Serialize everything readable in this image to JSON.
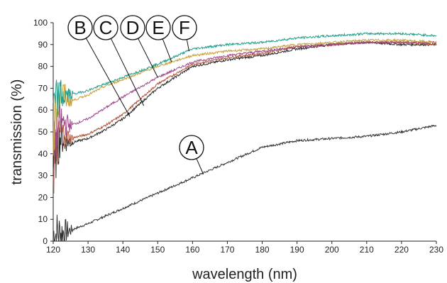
{
  "chart_data": {
    "type": "line",
    "xlabel": "wavelength (nm)",
    "ylabel": "transmission (%)",
    "xlim": [
      120,
      230
    ],
    "ylim": [
      0,
      100
    ],
    "x_ticks": [
      120,
      130,
      140,
      150,
      160,
      170,
      180,
      190,
      200,
      210,
      220,
      230
    ],
    "y_ticks": [
      0,
      10,
      20,
      30,
      40,
      50,
      60,
      70,
      80,
      90,
      100
    ],
    "grid": false,
    "series": [
      {
        "name": "A",
        "color": "#333333",
        "x": [
          120,
          125,
          130,
          140,
          150,
          160,
          170,
          180,
          190,
          200,
          210,
          220,
          230
        ],
        "y": [
          3,
          5,
          8,
          15,
          22,
          29,
          36,
          43,
          46,
          47,
          48,
          50,
          53
        ]
      },
      {
        "name": "B",
        "color": "#2b2b2b",
        "x": [
          120,
          122,
          125,
          130,
          135,
          140,
          150,
          160,
          170,
          180,
          190,
          200,
          210,
          220,
          230
        ],
        "y": [
          35,
          48,
          45,
          47,
          51,
          56,
          70,
          80,
          83,
          85,
          88,
          90,
          91,
          90,
          90
        ]
      },
      {
        "name": "C",
        "color": "#b0533a",
        "x": [
          120,
          122,
          125,
          130,
          135,
          140,
          150,
          160,
          170,
          180,
          190,
          200,
          210,
          220,
          230
        ],
        "y": [
          32,
          50,
          47,
          49,
          53,
          58,
          72,
          81,
          84,
          86,
          89,
          90,
          91,
          91,
          90
        ]
      },
      {
        "name": "D",
        "color": "#a04a8a",
        "x": [
          120,
          122,
          125,
          130,
          135,
          140,
          150,
          160,
          170,
          180,
          190,
          200,
          210,
          220,
          230
        ],
        "y": [
          40,
          55,
          53,
          56,
          61,
          66,
          75,
          82,
          85,
          87,
          89,
          90,
          91,
          91,
          91
        ]
      },
      {
        "name": "E",
        "color": "#c8a13a",
        "x": [
          120,
          122,
          125,
          130,
          135,
          140,
          150,
          160,
          170,
          180,
          190,
          200,
          210,
          220,
          230
        ],
        "y": [
          52,
          68,
          64,
          67,
          71,
          74,
          80,
          85,
          87,
          88,
          90,
          91,
          92,
          92,
          91
        ]
      },
      {
        "name": "F",
        "color": "#1f9e8a",
        "x": [
          120,
          122,
          125,
          130,
          135,
          140,
          150,
          160,
          170,
          180,
          190,
          200,
          210,
          220,
          230
        ],
        "y": [
          60,
          66,
          67,
          69,
          72,
          75,
          81,
          88,
          90,
          91,
          93,
          94,
          95,
          95,
          94
        ]
      }
    ],
    "callouts": [
      {
        "label": "A",
        "target_x": 163,
        "target_y": 31
      },
      {
        "label": "B",
        "target_x": 142,
        "target_y": 57
      },
      {
        "label": "C",
        "target_x": 146,
        "target_y": 62
      },
      {
        "label": "D",
        "target_x": 150,
        "target_y": 75
      },
      {
        "label": "E",
        "target_x": 154,
        "target_y": 82
      },
      {
        "label": "F",
        "target_x": 159,
        "target_y": 87
      }
    ]
  }
}
